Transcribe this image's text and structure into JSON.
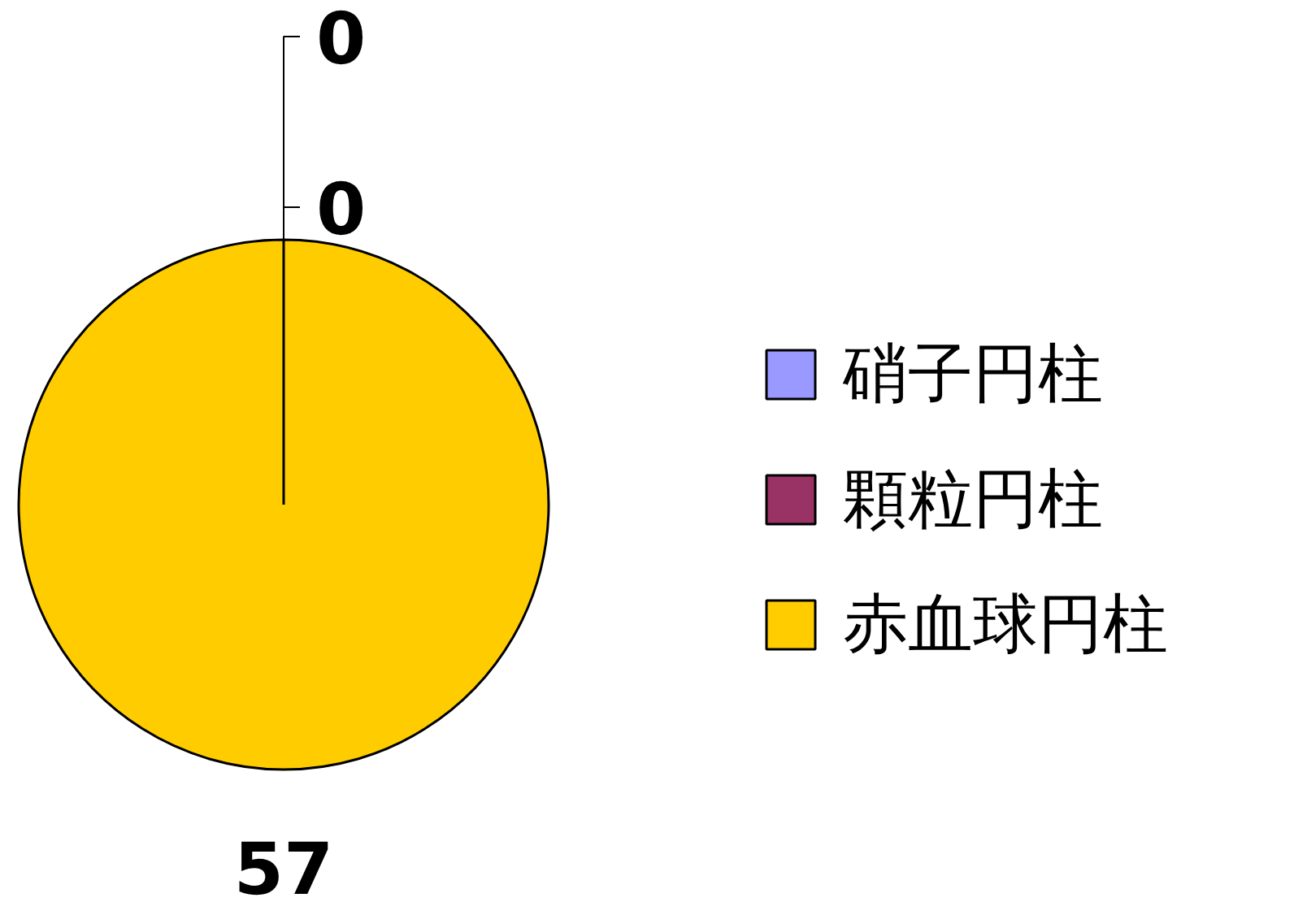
{
  "chart_data": {
    "type": "pie",
    "categories": [
      "硝子円柱",
      "顆粒円柱",
      "赤血球円柱"
    ],
    "values": [
      0,
      0,
      57
    ],
    "colors": [
      "#9999ff",
      "#993366",
      "#ffcc00"
    ],
    "value_labels": [
      "0",
      "0",
      "57"
    ],
    "legend": "right"
  }
}
